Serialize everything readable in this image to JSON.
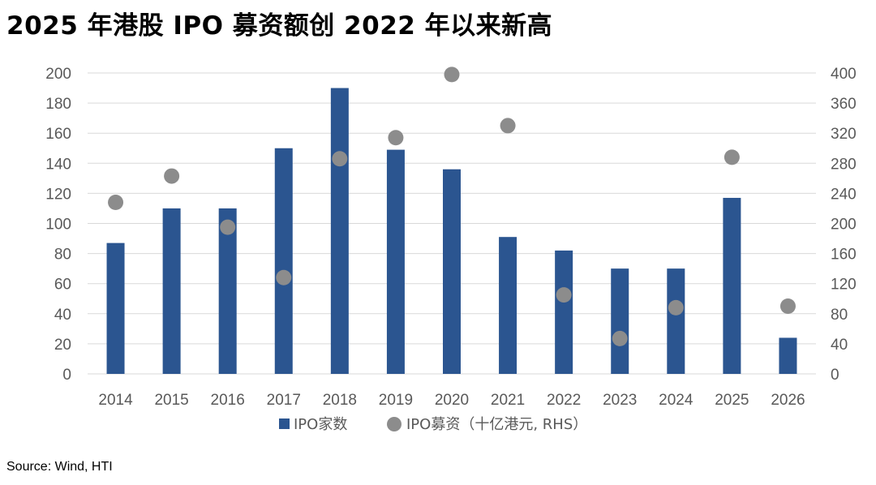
{
  "title": "2025 年港股 IPO 募资额创 2022 年以来新高",
  "source": "Source: Wind, HTI",
  "colors": {
    "bar": "#2b5590",
    "dot": "#8c8c8c",
    "grid": "#d9d9d9",
    "axis_text": "#595959"
  },
  "chart_data": {
    "type": "bar",
    "categories": [
      "2014",
      "2015",
      "2016",
      "2017",
      "2018",
      "2019",
      "2020",
      "2021",
      "2022",
      "2023",
      "2024",
      "2025",
      "2026"
    ],
    "series": [
      {
        "name": "IPO家数",
        "type": "bar",
        "axis": "left",
        "values": [
          87,
          110,
          110,
          150,
          190,
          149,
          136,
          91,
          82,
          70,
          70,
          117,
          24
        ]
      },
      {
        "name": "IPO募资（十亿港元, RHS）",
        "type": "scatter",
        "axis": "right",
        "values": [
          228,
          263,
          195,
          128,
          286,
          314,
          398,
          330,
          105,
          47,
          88,
          288,
          90
        ]
      }
    ],
    "ylim_left": [
      0,
      200
    ],
    "yticks_left": [
      "0",
      "20",
      "40",
      "60",
      "80",
      "100",
      "120",
      "140",
      "160",
      "180",
      "200"
    ],
    "ylim_right": [
      0,
      400
    ],
    "yticks_right": [
      "0",
      "40",
      "80",
      "120",
      "160",
      "200",
      "240",
      "280",
      "320",
      "360",
      "400"
    ],
    "grid": true,
    "legend_position": "bottom"
  }
}
